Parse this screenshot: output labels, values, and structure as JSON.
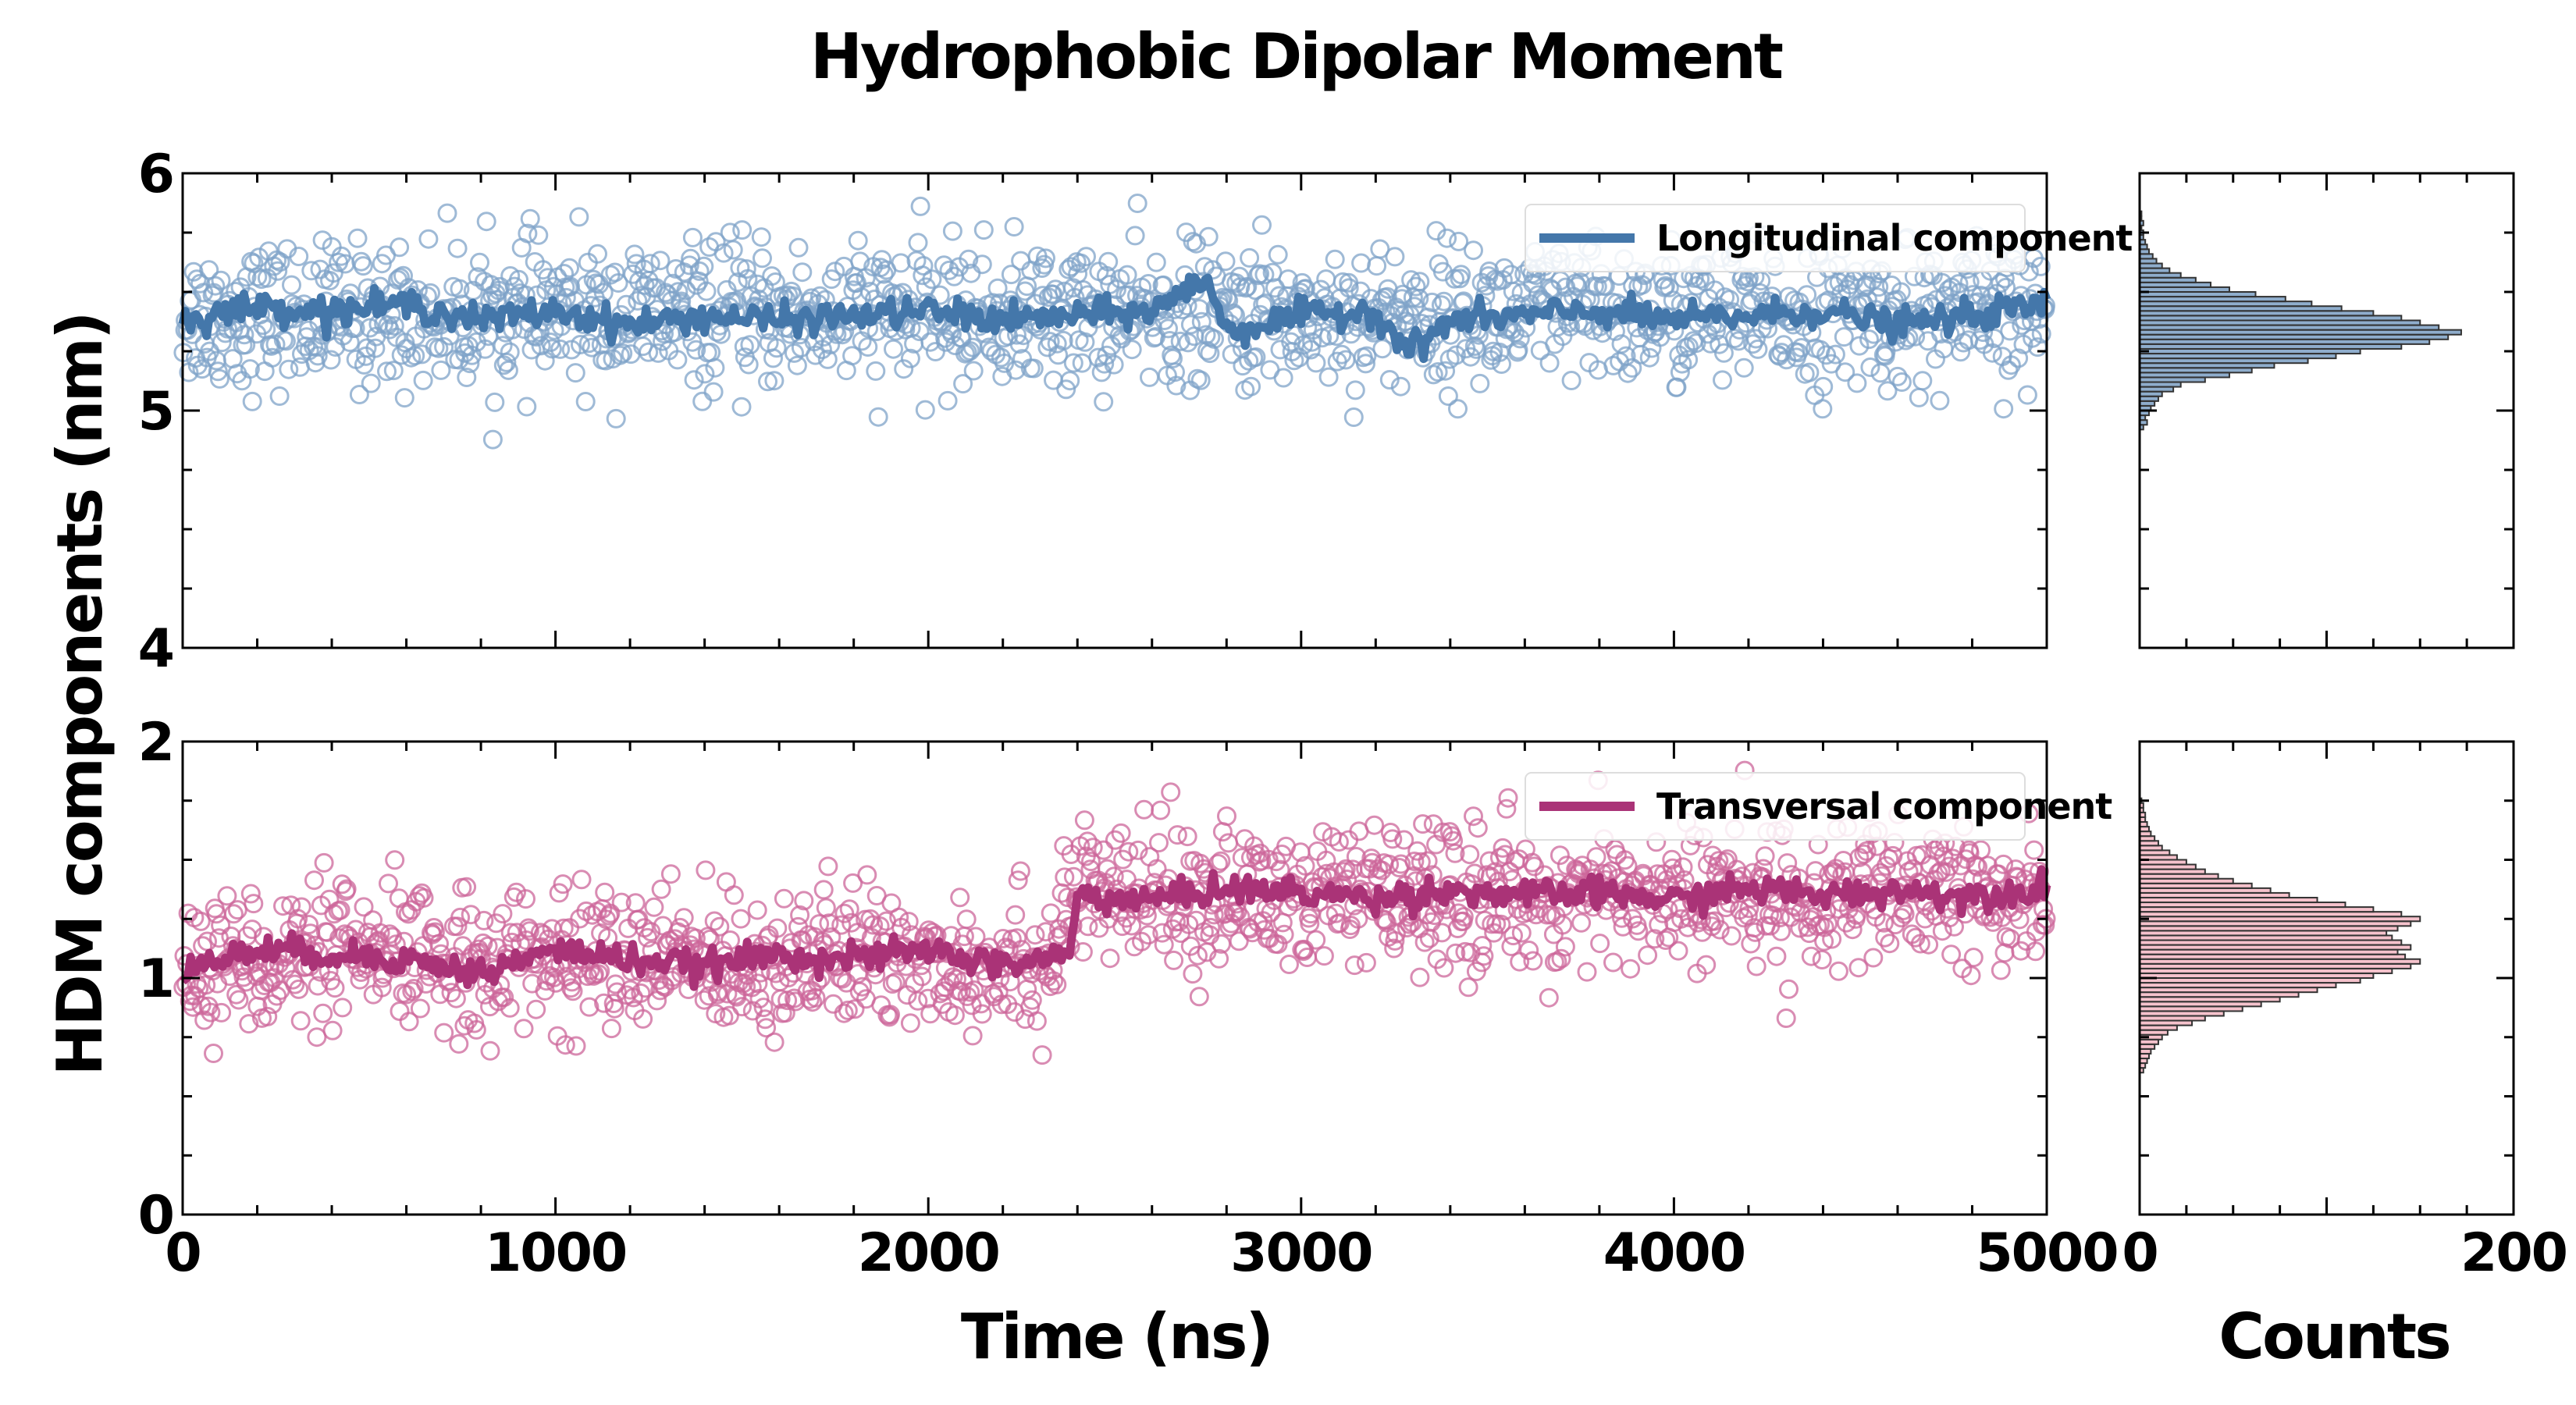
{
  "chart_data": {
    "title": "Hydrophobic Dipolar Moment",
    "ylabel": "HDM components (nm)",
    "xlabel": "Time (ns)",
    "hist_xlabel": "Counts",
    "panels": [
      {
        "type": "scatter",
        "name": "longitudinal",
        "xlim": [
          0,
          5000
        ],
        "ylim": [
          4,
          6
        ],
        "yticks": [
          "4",
          "5",
          "6"
        ],
        "legend": "Longitudinal component",
        "legend_position": "top-right",
        "color": "#4477aa",
        "marker_color": "#7fa3c8",
        "points": {
          "count": 1400,
          "mean": 5.4,
          "spread": 0.15
        },
        "line": {
          "description": "moving average",
          "x": [
            0,
            200,
            400,
            600,
            800,
            1000,
            1200,
            1400,
            1600,
            1800,
            2000,
            2200,
            2400,
            2600,
            2750,
            2800,
            3000,
            3200,
            3290,
            3400,
            3600,
            3800,
            4000,
            4200,
            4400,
            4600,
            4800,
            5000
          ],
          "y": [
            5.38,
            5.44,
            5.42,
            5.45,
            5.38,
            5.42,
            5.36,
            5.4,
            5.38,
            5.4,
            5.42,
            5.38,
            5.4,
            5.42,
            5.56,
            5.33,
            5.4,
            5.42,
            5.25,
            5.38,
            5.4,
            5.42,
            5.38,
            5.4,
            5.42,
            5.36,
            5.4,
            5.45
          ]
        }
      },
      {
        "type": "scatter",
        "name": "transversal",
        "xlim": [
          0,
          5000
        ],
        "ylim": [
          0,
          2
        ],
        "yticks": [
          "0",
          "1",
          "2"
        ],
        "legend": "Transversal component",
        "legend_position": "top-right",
        "color": "#aa3377",
        "marker_color": "#cc6699",
        "points": {
          "count": 1400,
          "segments": [
            {
              "x0": 0,
              "x1": 2350,
              "mean": 1.08,
              "spread": 0.15
            },
            {
              "x0": 2350,
              "x1": 5000,
              "mean": 1.34,
              "spread": 0.15
            }
          ]
        },
        "line": {
          "description": "moving average",
          "x": [
            0,
            200,
            400,
            600,
            800,
            1000,
            1200,
            1400,
            1600,
            1800,
            2000,
            2200,
            2300,
            2380,
            2400,
            2600,
            2800,
            3000,
            3200,
            3400,
            3600,
            3800,
            4000,
            4200,
            4400,
            4600,
            4800,
            5000
          ],
          "y": [
            1.03,
            1.12,
            1.1,
            1.08,
            1.02,
            1.12,
            1.08,
            1.05,
            1.1,
            1.08,
            1.12,
            1.05,
            1.08,
            1.1,
            1.35,
            1.33,
            1.38,
            1.36,
            1.34,
            1.37,
            1.35,
            1.36,
            1.33,
            1.38,
            1.35,
            1.37,
            1.35,
            1.38
          ]
        }
      }
    ],
    "x_axis": {
      "ticks": [
        "0",
        "1000",
        "2000",
        "3000",
        "4000",
        "5000"
      ]
    },
    "histograms": [
      {
        "type": "bar",
        "orientation": "horizontal",
        "xlim": [
          0,
          200
        ],
        "ylim": [
          4,
          6
        ],
        "color": "#4477aa",
        "bin_width": 0.02,
        "bin_centers": [
          4.93,
          4.95,
          4.97,
          4.99,
          5.01,
          5.03,
          5.05,
          5.07,
          5.09,
          5.11,
          5.13,
          5.15,
          5.17,
          5.19,
          5.21,
          5.23,
          5.25,
          5.27,
          5.29,
          5.31,
          5.33,
          5.35,
          5.37,
          5.39,
          5.41,
          5.43,
          5.45,
          5.47,
          5.49,
          5.51,
          5.53,
          5.55,
          5.57,
          5.59,
          5.61,
          5.63,
          5.65,
          5.67,
          5.69,
          5.71,
          5.73,
          5.75,
          5.77,
          5.79,
          5.81,
          5.83
        ],
        "counts": [
          2,
          4,
          3,
          5,
          6,
          8,
          10,
          12,
          18,
          22,
          35,
          48,
          60,
          72,
          90,
          105,
          118,
          140,
          155,
          165,
          172,
          160,
          150,
          140,
          125,
          108,
          92,
          78,
          62,
          48,
          38,
          30,
          22,
          16,
          12,
          9,
          7,
          5,
          4,
          3,
          2,
          2,
          1,
          2,
          1,
          1
        ]
      },
      {
        "type": "bar",
        "orientation": "horizontal",
        "xlim": [
          0,
          200
        ],
        "ylim": [
          0,
          2
        ],
        "color": "#ee99aa",
        "bin_width": 0.02,
        "bin_centers": [
          0.61,
          0.63,
          0.65,
          0.67,
          0.69,
          0.71,
          0.73,
          0.75,
          0.77,
          0.79,
          0.81,
          0.83,
          0.85,
          0.87,
          0.89,
          0.91,
          0.93,
          0.95,
          0.97,
          0.99,
          1.01,
          1.03,
          1.05,
          1.07,
          1.09,
          1.11,
          1.13,
          1.15,
          1.17,
          1.19,
          1.21,
          1.23,
          1.25,
          1.27,
          1.29,
          1.31,
          1.33,
          1.35,
          1.37,
          1.39,
          1.41,
          1.43,
          1.45,
          1.47,
          1.49,
          1.51,
          1.53,
          1.55,
          1.57,
          1.59,
          1.61,
          1.63,
          1.65,
          1.67,
          1.69,
          1.71,
          1.73,
          1.75
        ],
        "counts": [
          2,
          3,
          4,
          5,
          6,
          8,
          10,
          12,
          15,
          20,
          28,
          35,
          45,
          55,
          65,
          75,
          85,
          95,
          105,
          118,
          125,
          135,
          145,
          150,
          142,
          138,
          145,
          140,
          135,
          132,
          138,
          145,
          150,
          140,
          125,
          110,
          95,
          80,
          70,
          60,
          50,
          42,
          35,
          30,
          25,
          20,
          16,
          12,
          10,
          8,
          6,
          5,
          4,
          3,
          3,
          2,
          2,
          1
        ]
      }
    ]
  }
}
